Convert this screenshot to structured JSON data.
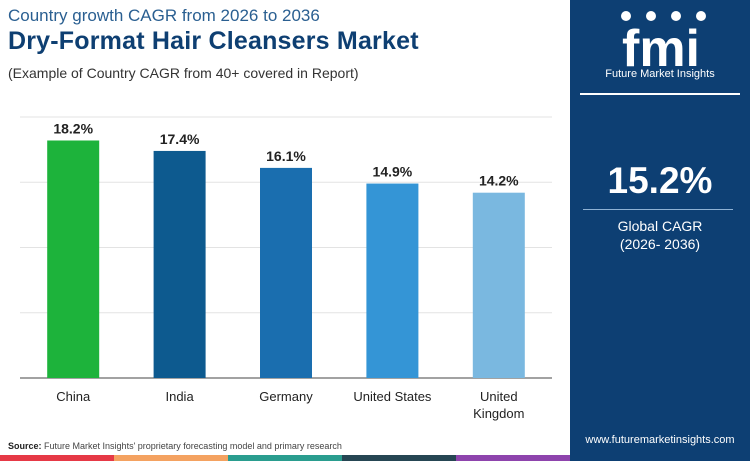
{
  "header": {
    "subtitle": "Country growth CAGR from 2026 to 2036",
    "title": "Dry-Format Hair Cleansers Market",
    "example": "(Example of Country CAGR from 40+ covered in Report)"
  },
  "side_panel": {
    "logo_text": "fmi",
    "logo_tagline": "Future Market Insights",
    "global_value": "15.2%",
    "global_label": "Global CAGR",
    "global_period": "(2026- 2036)",
    "website": "www.futuremarketinsights.com",
    "background": "#0d3f73"
  },
  "source": {
    "label": "Source:",
    "text": "Future Market Insights' proprietary forecasting model and primary research"
  },
  "bottom_strip_colors": [
    "#e63946",
    "#f4a261",
    "#2a9d8f",
    "#264653",
    "#8e44ad"
  ],
  "chart_data": {
    "type": "bar",
    "categories": [
      "China",
      "India",
      "Germany",
      "United States",
      "United Kingdom"
    ],
    "values": [
      18.2,
      17.4,
      16.1,
      14.9,
      14.2
    ],
    "data_labels": [
      "18.2%",
      "17.4%",
      "16.1%",
      "14.9%",
      "14.2%"
    ],
    "colors": [
      "#1db33b",
      "#0d5a8f",
      "#1a6eaf",
      "#3495d6",
      "#7ab8e0"
    ],
    "ylim": [
      0,
      20
    ],
    "grid": true,
    "title": "",
    "xlabel": "",
    "ylabel": ""
  }
}
